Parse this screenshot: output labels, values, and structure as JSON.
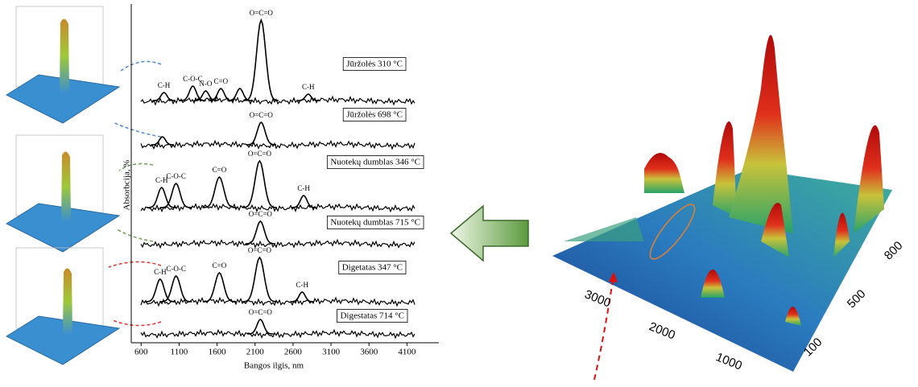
{
  "chart_data": {
    "type": "line",
    "xlabel": "Bangos ilgis, nm",
    "ylabel": "Absorbcija, %",
    "xlim": [
      470,
      4520
    ],
    "xticks": [
      600,
      1100,
      1600,
      2100,
      2600,
      3100,
      3600,
      4100
    ],
    "series": [
      {
        "name": "Jūržolės 310 °C",
        "color": "#000000",
        "x": [
          900,
          1280,
          1450,
          1650,
          1900,
          2180,
          2800
        ],
        "values": [
          10,
          18,
          12,
          15,
          15,
          100,
          8
        ],
        "peak_labels": [
          "C-H",
          "C-O-C",
          "N-O",
          "C=O",
          null,
          "O=C=O",
          "C-H"
        ]
      },
      {
        "name": "Jūržolės 698 °C",
        "color": "#000000",
        "x": [
          880,
          2180
        ],
        "values": [
          10,
          28
        ],
        "peak_labels": [
          null,
          "O=C=O"
        ]
      },
      {
        "name": "Nuotekų dumblas 346 °C",
        "color": "#000000",
        "x": [
          870,
          1060,
          1630,
          2160,
          2740
        ],
        "values": [
          25,
          30,
          38,
          58,
          15
        ],
        "peak_labels": [
          "C-H",
          "C-O-C",
          "C=O",
          "O=C=O",
          "C-H"
        ]
      },
      {
        "name": "Nuotekų dumblas 715 °C",
        "color": "#000000",
        "x": [
          2170
        ],
        "values": [
          28
        ],
        "peak_labels": [
          "O=C=O"
        ]
      },
      {
        "name": "Digetatas 347 °C",
        "color": "#000000",
        "x": [
          850,
          1060,
          1630,
          2160,
          2720
        ],
        "values": [
          28,
          32,
          36,
          55,
          12
        ],
        "peak_labels": [
          "C-H",
          "C-O-C",
          "C=O",
          "O=C=O",
          "C-H"
        ]
      },
      {
        "name": "Digestatas 714 °C",
        "color": "#000000",
        "x": [
          2170
        ],
        "values": [
          18
        ],
        "peak_labels": [
          "O=C=O"
        ]
      }
    ]
  },
  "surface": {
    "x_tick_labels": [
      3000,
      2000,
      1000
    ],
    "y_tick_labels": [
      100,
      500,
      800
    ]
  }
}
